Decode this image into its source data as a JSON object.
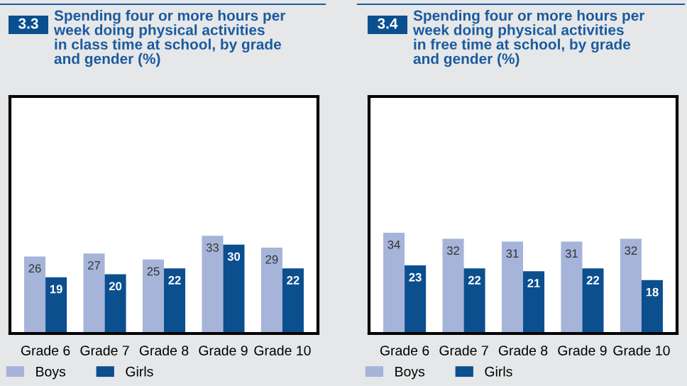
{
  "chart_data": [
    {
      "type": "bar",
      "title": "Spending four or more hours per\nweek doing physical activities\nin class time at school, by grade\nand gender (%)",
      "annotations": [
        "3.3"
      ],
      "categories": [
        "Grade 6",
        "Grade 7",
        "Grade 8",
        "Grade 9",
        "Grade 10"
      ],
      "series": [
        {
          "name": "Boys",
          "color": "#a5b4d8",
          "values": [
            26,
            27,
            25,
            33,
            29
          ]
        },
        {
          "name": "Girls",
          "color": "#0b4f8f",
          "values": [
            19,
            20,
            22,
            30,
            22
          ]
        }
      ],
      "ylim": [
        0,
        80
      ],
      "tick_labels": "x",
      "data_labels": true,
      "legend": "bottom left",
      "grid": false
    },
    {
      "type": "bar",
      "title": "Spending four or more hours per\nweek doing physical activities\nin free time at school, by grade\nand gender (%)",
      "annotations": [
        "3.4"
      ],
      "categories": [
        "Grade 6",
        "Grade 7",
        "Grade 8",
        "Grade 9",
        "Grade 10"
      ],
      "series": [
        {
          "name": "Boys",
          "color": "#a5b4d8",
          "values": [
            34,
            32,
            31,
            31,
            32
          ]
        },
        {
          "name": "Girls",
          "color": "#0b4f8f",
          "values": [
            23,
            22,
            21,
            22,
            18
          ]
        }
      ],
      "ylim": [
        0,
        80
      ],
      "tick_labels": "x",
      "data_labels": true,
      "legend": "bottom left",
      "grid": false
    }
  ]
}
